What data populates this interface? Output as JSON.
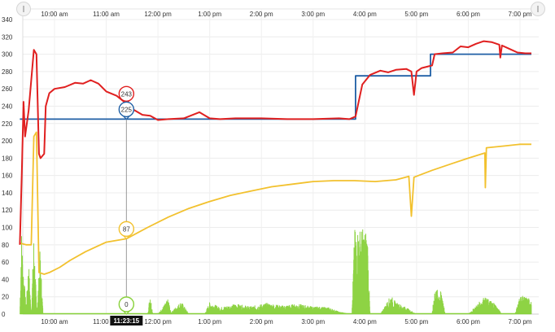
{
  "chart_data": {
    "type": "line",
    "x_ticks": [
      "10:00 am",
      "11:00 am",
      "12:00 pm",
      "1:00 pm",
      "2:00 pm",
      "3:00 pm",
      "4:00 pm",
      "5:00 pm",
      "6:00 pm",
      "7:00 pm"
    ],
    "xlim": [
      9.33,
      19.22
    ],
    "ylim": [
      0,
      340
    ],
    "y_ticks": [
      0,
      20,
      40,
      60,
      80,
      100,
      120,
      140,
      160,
      180,
      200,
      220,
      240,
      260,
      280,
      300,
      320,
      340
    ],
    "grid": true,
    "cursor": {
      "time_label": "11:23:15",
      "x": 11.39
    },
    "series": [
      {
        "color": "#e02020",
        "points": [
          [
            9.33,
            80
          ],
          [
            9.37,
            170
          ],
          [
            9.4,
            245
          ],
          [
            9.43,
            205
          ],
          [
            9.47,
            222
          ],
          [
            9.5,
            235
          ],
          [
            9.55,
            270
          ],
          [
            9.6,
            305
          ],
          [
            9.65,
            300
          ],
          [
            9.7,
            185
          ],
          [
            9.73,
            180
          ],
          [
            9.8,
            185
          ],
          [
            9.83,
            240
          ],
          [
            9.9,
            255
          ],
          [
            10.0,
            260
          ],
          [
            10.2,
            262
          ],
          [
            10.4,
            267
          ],
          [
            10.55,
            266
          ],
          [
            10.7,
            270
          ],
          [
            10.85,
            266
          ],
          [
            11.0,
            257
          ],
          [
            11.2,
            252
          ],
          [
            11.39,
            243
          ],
          [
            11.5,
            237
          ],
          [
            11.7,
            230
          ],
          [
            11.85,
            229
          ],
          [
            12.0,
            224
          ],
          [
            12.2,
            225
          ],
          [
            12.5,
            226
          ],
          [
            12.8,
            233
          ],
          [
            13.0,
            226
          ],
          [
            13.2,
            225
          ],
          [
            13.5,
            226
          ],
          [
            14.0,
            226
          ],
          [
            14.5,
            225
          ],
          [
            15.0,
            225
          ],
          [
            15.5,
            226
          ],
          [
            15.7,
            225
          ],
          [
            15.82,
            228
          ],
          [
            15.95,
            265
          ],
          [
            16.1,
            276
          ],
          [
            16.3,
            281
          ],
          [
            16.45,
            279
          ],
          [
            16.6,
            282
          ],
          [
            16.8,
            283
          ],
          [
            16.9,
            280
          ],
          [
            16.95,
            253
          ],
          [
            17.0,
            280
          ],
          [
            17.1,
            284
          ],
          [
            17.3,
            287
          ],
          [
            17.35,
            300
          ],
          [
            17.5,
            301
          ],
          [
            17.7,
            302
          ],
          [
            17.85,
            309
          ],
          [
            18.0,
            308
          ],
          [
            18.15,
            312
          ],
          [
            18.3,
            315
          ],
          [
            18.45,
            314
          ],
          [
            18.6,
            311
          ],
          [
            18.62,
            296
          ],
          [
            18.65,
            310
          ],
          [
            18.8,
            306
          ],
          [
            18.95,
            302
          ],
          [
            19.1,
            301
          ],
          [
            19.22,
            301
          ]
        ]
      },
      {
        "color": "#1f5fa5",
        "points": [
          [
            9.33,
            225
          ],
          [
            15.82,
            225
          ],
          [
            15.82,
            275
          ],
          [
            17.27,
            275
          ],
          [
            17.27,
            300
          ],
          [
            19.22,
            300
          ]
        ]
      },
      {
        "color": "#f2c12e",
        "points": [
          [
            9.33,
            82
          ],
          [
            9.45,
            80
          ],
          [
            9.55,
            80
          ],
          [
            9.6,
            205
          ],
          [
            9.65,
            210
          ],
          [
            9.7,
            48
          ],
          [
            9.8,
            46
          ],
          [
            9.9,
            48
          ],
          [
            10.1,
            54
          ],
          [
            10.3,
            62
          ],
          [
            10.6,
            72
          ],
          [
            11.0,
            83
          ],
          [
            11.39,
            87
          ],
          [
            11.8,
            100
          ],
          [
            12.2,
            112
          ],
          [
            12.6,
            122
          ],
          [
            13.0,
            130
          ],
          [
            13.4,
            137
          ],
          [
            13.8,
            142
          ],
          [
            14.2,
            147
          ],
          [
            14.6,
            150
          ],
          [
            15.0,
            153
          ],
          [
            15.4,
            154
          ],
          [
            15.8,
            154
          ],
          [
            16.2,
            153
          ],
          [
            16.6,
            155
          ],
          [
            16.85,
            159
          ],
          [
            16.9,
            113
          ],
          [
            16.95,
            158
          ],
          [
            17.3,
            166
          ],
          [
            17.7,
            174
          ],
          [
            18.0,
            180
          ],
          [
            18.32,
            186
          ],
          [
            18.33,
            146
          ],
          [
            18.35,
            192
          ],
          [
            18.7,
            194
          ],
          [
            19.0,
            196
          ],
          [
            19.22,
            196
          ]
        ]
      },
      {
        "color": "#88d13a",
        "points": [
          [
            9.33,
            0
          ],
          [
            9.36,
            100
          ],
          [
            9.4,
            52
          ],
          [
            9.45,
            10
          ],
          [
            9.5,
            62
          ],
          [
            9.55,
            0
          ],
          [
            9.6,
            95
          ],
          [
            9.66,
            0
          ],
          [
            9.72,
            75
          ],
          [
            9.78,
            0
          ],
          [
            10.0,
            0
          ],
          [
            11.39,
            0
          ],
          [
            11.8,
            0
          ],
          [
            11.85,
            25
          ],
          [
            11.9,
            0
          ],
          [
            12.0,
            0
          ],
          [
            12.2,
            18
          ],
          [
            12.25,
            2
          ],
          [
            12.45,
            15
          ],
          [
            12.6,
            0
          ],
          [
            12.9,
            0
          ],
          [
            13.0,
            14
          ],
          [
            13.2,
            8
          ],
          [
            13.5,
            12
          ],
          [
            13.8,
            9
          ],
          [
            14.1,
            13
          ],
          [
            14.4,
            10
          ],
          [
            14.7,
            12
          ],
          [
            15.0,
            9
          ],
          [
            15.3,
            8
          ],
          [
            15.5,
            3
          ],
          [
            15.75,
            0
          ],
          [
            15.8,
            98
          ],
          [
            15.95,
            100
          ],
          [
            16.05,
            97
          ],
          [
            16.1,
            0
          ],
          [
            16.3,
            0
          ],
          [
            16.5,
            22
          ],
          [
            16.6,
            14
          ],
          [
            16.8,
            8
          ],
          [
            17.0,
            0
          ],
          [
            17.3,
            0
          ],
          [
            17.35,
            30
          ],
          [
            17.5,
            25
          ],
          [
            17.55,
            0
          ],
          [
            18.0,
            0
          ],
          [
            18.3,
            20
          ],
          [
            18.5,
            14
          ],
          [
            18.65,
            0
          ],
          [
            18.9,
            0
          ],
          [
            19.0,
            22
          ],
          [
            19.22,
            18
          ]
        ]
      }
    ],
    "markers": [
      {
        "series_index": 0,
        "y": 243,
        "label": "243"
      },
      {
        "series_index": 1,
        "y": 225,
        "label": "225"
      },
      {
        "series_index": 2,
        "y": 87,
        "label": "87"
      },
      {
        "series_index": 3,
        "y": 0,
        "label": "0"
      }
    ]
  },
  "icons": {
    "left_handle": "drag-handle-icon",
    "right_handle": "drag-handle-icon"
  }
}
